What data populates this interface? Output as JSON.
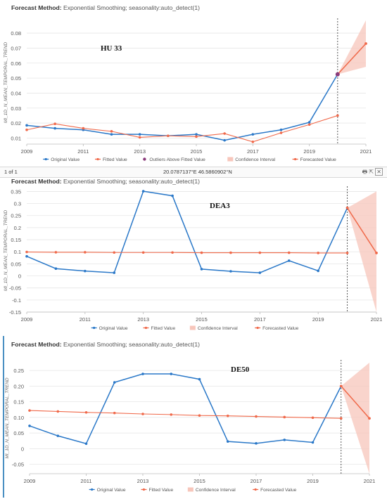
{
  "colors": {
    "original": "#2a78c8",
    "fitted": "#f0694a",
    "outlier": "#8b3a7a",
    "confidence": "#f7c6bb",
    "grid": "#e6e6e6",
    "axis_text": "#555555"
  },
  "pager": {
    "text": "1 of 1",
    "icons": [
      "print-icon",
      "export-icon",
      "close-icon"
    ]
  },
  "coordinates": "20.0787137°E 46.5860902°N",
  "chart_data": [
    {
      "type": "line",
      "header_label": "Forecast Method:",
      "header_value": "Exponential Smoothing; seasonality:auto_detect(1)",
      "annotation": "HU 33",
      "ylabel": "MI_1D_N_MEAN_TEMPORAL_TREND",
      "x": [
        2009,
        2010,
        2011,
        2012,
        2013,
        2014,
        2015,
        2016,
        2017,
        2018,
        2019,
        2020
      ],
      "xticks": [
        "2009",
        "2011",
        "2013",
        "2015",
        "2017",
        "2019",
        "2021"
      ],
      "xlim": [
        2009,
        2021
      ],
      "yticks": [
        "0.01",
        "0.02",
        "0.03",
        "0.04",
        "0.05",
        "0.06",
        "0.07",
        "0.08"
      ],
      "ylim": [
        0.006,
        0.088
      ],
      "series": [
        {
          "name": "Original Value",
          "values": [
            0.0185,
            0.0165,
            0.0155,
            0.0125,
            0.0125,
            0.0115,
            0.0125,
            0.0085,
            0.0125,
            0.0155,
            0.0205,
            0.0525
          ]
        },
        {
          "name": "Fitted Value",
          "values": [
            0.0155,
            0.0195,
            0.0165,
            0.0145,
            0.0105,
            0.0115,
            0.011,
            0.013,
            0.0075,
            0.0135,
            0.019,
            0.025
          ]
        }
      ],
      "outlier": {
        "x": 2020,
        "y": 0.0525
      },
      "forecast": {
        "x": [
          2020,
          2021
        ],
        "values": [
          0.0525,
          0.073
        ]
      },
      "confidence": {
        "x": [
          2020,
          2021
        ],
        "upper": [
          0.0525,
          0.0885
        ],
        "lower": [
          0.0525,
          0.0575
        ]
      },
      "forecast_start": 2020,
      "legend": [
        "Original Value",
        "Fitted Value",
        "Outliers Above Fitted Value",
        "Confidence Interval",
        "Forecasted Value"
      ]
    },
    {
      "type": "line",
      "header_label": "Forecast Method:",
      "header_value": "Exponential Smoothing; seasonality:auto_detect(1)",
      "annotation": "DEA3",
      "ylabel": "MI_1D_N_MEAN_TEMPORAL_TREND",
      "x": [
        2009,
        2010,
        2011,
        2012,
        2013,
        2014,
        2015,
        2016,
        2017,
        2018,
        2019,
        2020
      ],
      "xticks": [
        "2009",
        "2011",
        "2013",
        "2015",
        "2017",
        "2019",
        "2021"
      ],
      "xlim": [
        2009,
        2021
      ],
      "yticks": [
        "-0.15",
        "-0.1",
        "-0.05",
        "0",
        "0.05",
        "0.1",
        "0.15",
        "0.2",
        "0.25",
        "0.3",
        "0.35"
      ],
      "ylim": [
        -0.15,
        0.36
      ],
      "series": [
        {
          "name": "Original Value",
          "values": [
            0.081,
            0.03,
            0.02,
            0.013,
            0.351,
            0.332,
            0.028,
            0.019,
            0.013,
            0.063,
            0.021,
            0.282
          ]
        },
        {
          "name": "Fitted Value",
          "values": [
            0.099,
            0.098,
            0.098,
            0.097,
            0.097,
            0.097,
            0.096,
            0.096,
            0.096,
            0.096,
            0.095,
            0.095
          ]
        }
      ],
      "forecast": {
        "x": [
          2020,
          2021
        ],
        "values": [
          0.282,
          0.095
        ]
      },
      "confidence": {
        "x": [
          2020,
          2021
        ],
        "upper": [
          0.282,
          0.35
        ],
        "lower": [
          0.282,
          -0.15
        ]
      },
      "forecast_start": 2020,
      "legend": [
        "Original Value",
        "Fitted Value",
        "Confidence Interval",
        "Forecasted Value"
      ]
    },
    {
      "type": "line",
      "header_label": "Forecast Method:",
      "header_value": "Exponential Smoothing; seasonality:auto_detect(1)",
      "annotation": "DE50",
      "ylabel": "MI_1D_N_MEAN_TEMPORAL_TREND",
      "x": [
        2009,
        2010,
        2011,
        2012,
        2013,
        2014,
        2015,
        2016,
        2017,
        2018,
        2019,
        2020
      ],
      "xticks": [
        "2009",
        "2011",
        "2013",
        "2015",
        "2017",
        "2019",
        "2021"
      ],
      "xlim": [
        2009,
        2021
      ],
      "yticks": [
        "-0.05",
        "0",
        "0.05",
        "0.10",
        "0.15",
        "0.20",
        "0.25"
      ],
      "ylim": [
        -0.08,
        0.275
      ],
      "series": [
        {
          "name": "Original Value",
          "values": [
            0.073,
            0.041,
            0.016,
            0.212,
            0.239,
            0.239,
            0.222,
            0.023,
            0.017,
            0.028,
            0.02,
            0.2
          ]
        },
        {
          "name": "Fitted Value",
          "values": [
            0.122,
            0.119,
            0.116,
            0.114,
            0.111,
            0.109,
            0.106,
            0.105,
            0.103,
            0.101,
            0.099,
            0.097
          ]
        }
      ],
      "forecast": {
        "x": [
          2020,
          2021
        ],
        "values": [
          0.2,
          0.097
        ]
      },
      "confidence": {
        "x": [
          2020,
          2021
        ],
        "upper": [
          0.2,
          0.275
        ],
        "lower": [
          0.2,
          -0.08
        ]
      },
      "forecast_start": 2020,
      "legend": [
        "Original Value",
        "Fitted Value",
        "Confidence Interval",
        "Forecasted Value"
      ]
    }
  ]
}
